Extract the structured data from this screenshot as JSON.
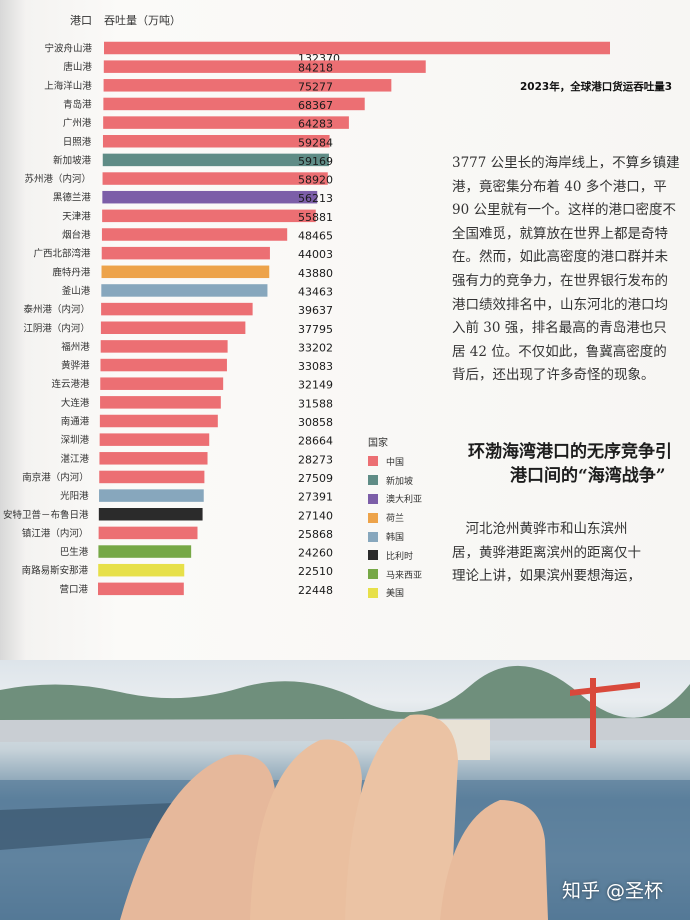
{
  "chart_data": {
    "type": "bar",
    "orientation": "horizontal",
    "title": "2023年，全球港口货运吞吐量3",
    "axis_headers": {
      "category": "港口",
      "value": "吞吐量（万吨）"
    },
    "categories": [
      "宁波舟山港",
      "唐山港",
      "上海洋山港",
      "青岛港",
      "广州港",
      "日照港",
      "新加坡港",
      "苏州港（内河）",
      "黑德兰港",
      "天津港",
      "烟台港",
      "广西北部湾港",
      "鹿特丹港",
      "釜山港",
      "泰州港（内河）",
      "江阴港（内河）",
      "福州港",
      "黄骅港",
      "连云港港",
      "大连港",
      "南通港",
      "深圳港",
      "湛江港",
      "南京港（内河）",
      "光阳港",
      "安特卫普－布鲁日港",
      "镇江港（内河）",
      "巴生港",
      "南路易斯安那港",
      "营口港"
    ],
    "values": [
      132370,
      84218,
      75277,
      68367,
      64283,
      59284,
      59169,
      58920,
      56213,
      55881,
      48465,
      44003,
      43880,
      43463,
      39637,
      37795,
      33202,
      33083,
      32149,
      31588,
      30858,
      28664,
      28273,
      27509,
      27391,
      27140,
      25868,
      24260,
      22510,
      22448
    ],
    "value_labels": [
      "132370",
      "84218",
      "75277",
      "68367",
      "64283",
      "59284",
      "59169",
      "58920",
      "56213",
      "55881",
      "48465",
      "44003",
      "43880",
      "43463",
      "39637",
      "37795",
      "33202",
      "33083",
      "32149",
      "31588",
      "30858",
      "28664",
      "28273",
      "27509",
      "27391",
      "27140",
      "25868",
      "24260",
      "22510",
      "22448"
    ],
    "countries": [
      "中国",
      "中国",
      "中国",
      "中国",
      "中国",
      "中国",
      "新加坡",
      "中国",
      "澳大利亚",
      "中国",
      "中国",
      "中国",
      "荷兰",
      "韩国",
      "中国",
      "中国",
      "中国",
      "中国",
      "中国",
      "中国",
      "中国",
      "中国",
      "中国",
      "中国",
      "韩国",
      "比利时",
      "中国",
      "马来西亚",
      "美国",
      "中国"
    ],
    "legend": {
      "title": "国家",
      "position": "bottom-right",
      "items": [
        {
          "name": "中国",
          "color": "#ec6f73"
        },
        {
          "name": "新加坡",
          "color": "#5f8c86"
        },
        {
          "name": "澳大利亚",
          "color": "#7c5ea8"
        },
        {
          "name": "荷兰",
          "color": "#eda34a"
        },
        {
          "name": "韩国",
          "color": "#87a7bd"
        },
        {
          "name": "比利时",
          "color": "#2b2b2b"
        },
        {
          "name": "马来西亚",
          "color": "#76a846"
        },
        {
          "name": "美国",
          "color": "#e7e049"
        }
      ]
    },
    "grid": false
  },
  "article": {
    "paragraph1": [
      "3777 公里长的海岸线上，不算乡镇建",
      "港，竟密集分布着 40 多个港口，平",
      "90 公里就有一个。这样的港口密度不",
      "全国难觅，就算放在世界上都是奇特",
      "在。然而，如此高密度的港口群并未",
      "强有力的竞争力，在世界银行发布的",
      "港口绩效排名中，山东河北的港口均",
      "入前 30 强，排名最高的青岛港也只",
      "居 42 位。不仅如此，鲁冀高密度的",
      "背后，还出现了许多奇怪的现象。"
    ],
    "heading": [
      "环渤海湾港口的无序竞争引",
      "港口间的“海湾战争”"
    ],
    "paragraph2": [
      "　河北沧州黄骅市和山东滨州",
      "居，黄骅港距离滨州的距离仅十",
      "理论上讲，如果滨州要想海运，"
    ]
  },
  "watermark": "知乎 @圣杯"
}
